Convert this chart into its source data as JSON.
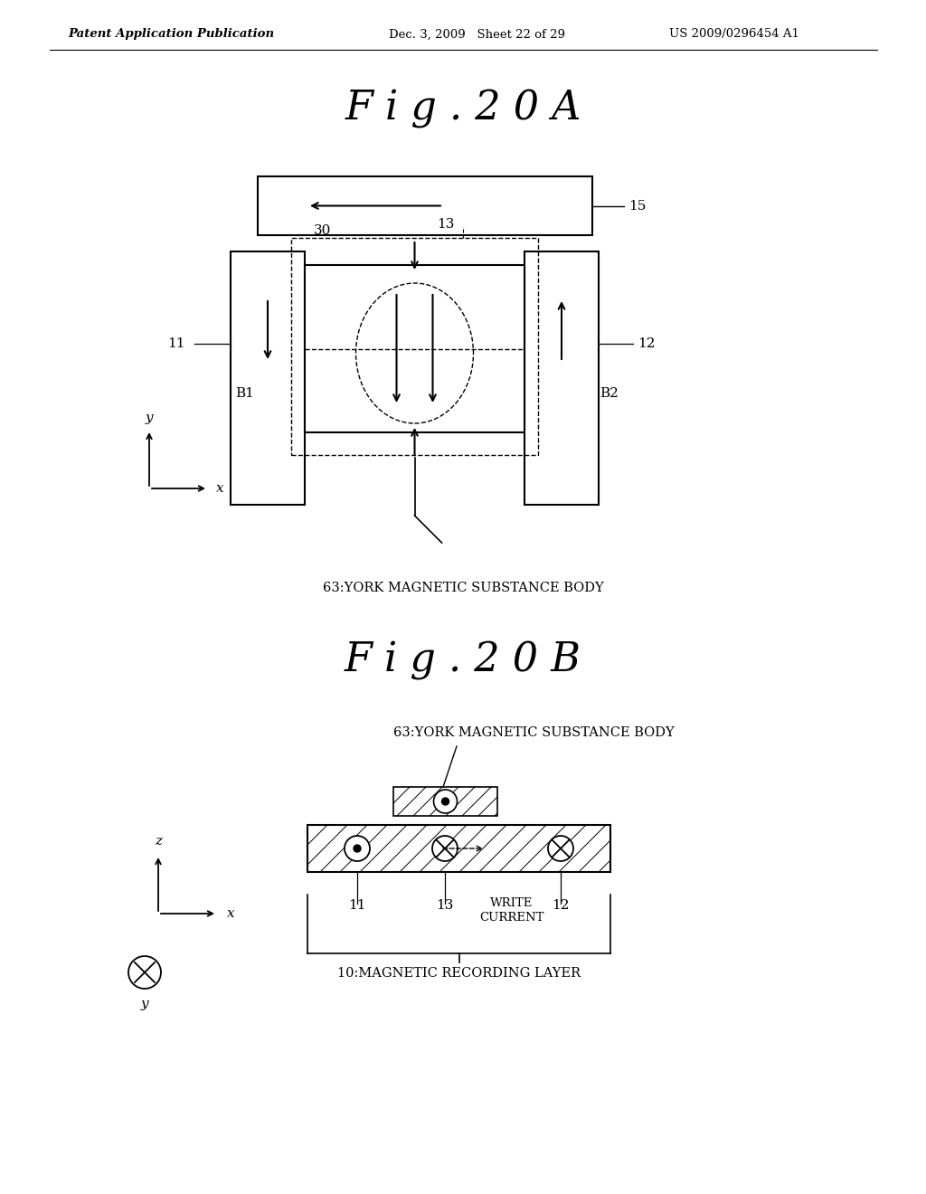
{
  "bg_color": "#ffffff",
  "header_left": "Patent Application Publication",
  "header_mid": "Dec. 3, 2009   Sheet 22 of 29",
  "header_right": "US 2009/0296454 A1",
  "fig20A_title": "F i g . 2 0 A",
  "fig20B_title": "F i g . 2 0 B",
  "label_15": "15",
  "label_11": "11",
  "label_12": "12",
  "label_13": "13",
  "label_30": "30",
  "label_B1": "B1",
  "label_B2": "B2",
  "label_63A": "63:YORK MAGNETIC SUBSTANCE BODY",
  "label_63B": "63:YORK MAGNETIC SUBSTANCE BODY",
  "label_11B": "11",
  "label_13B": "13",
  "label_12B": "12",
  "label_write": "WRITE\nCURRENT",
  "label_10": "10:MAGNETIC RECORDING LAYER",
  "line_color": "#000000",
  "text_color": "#000000"
}
